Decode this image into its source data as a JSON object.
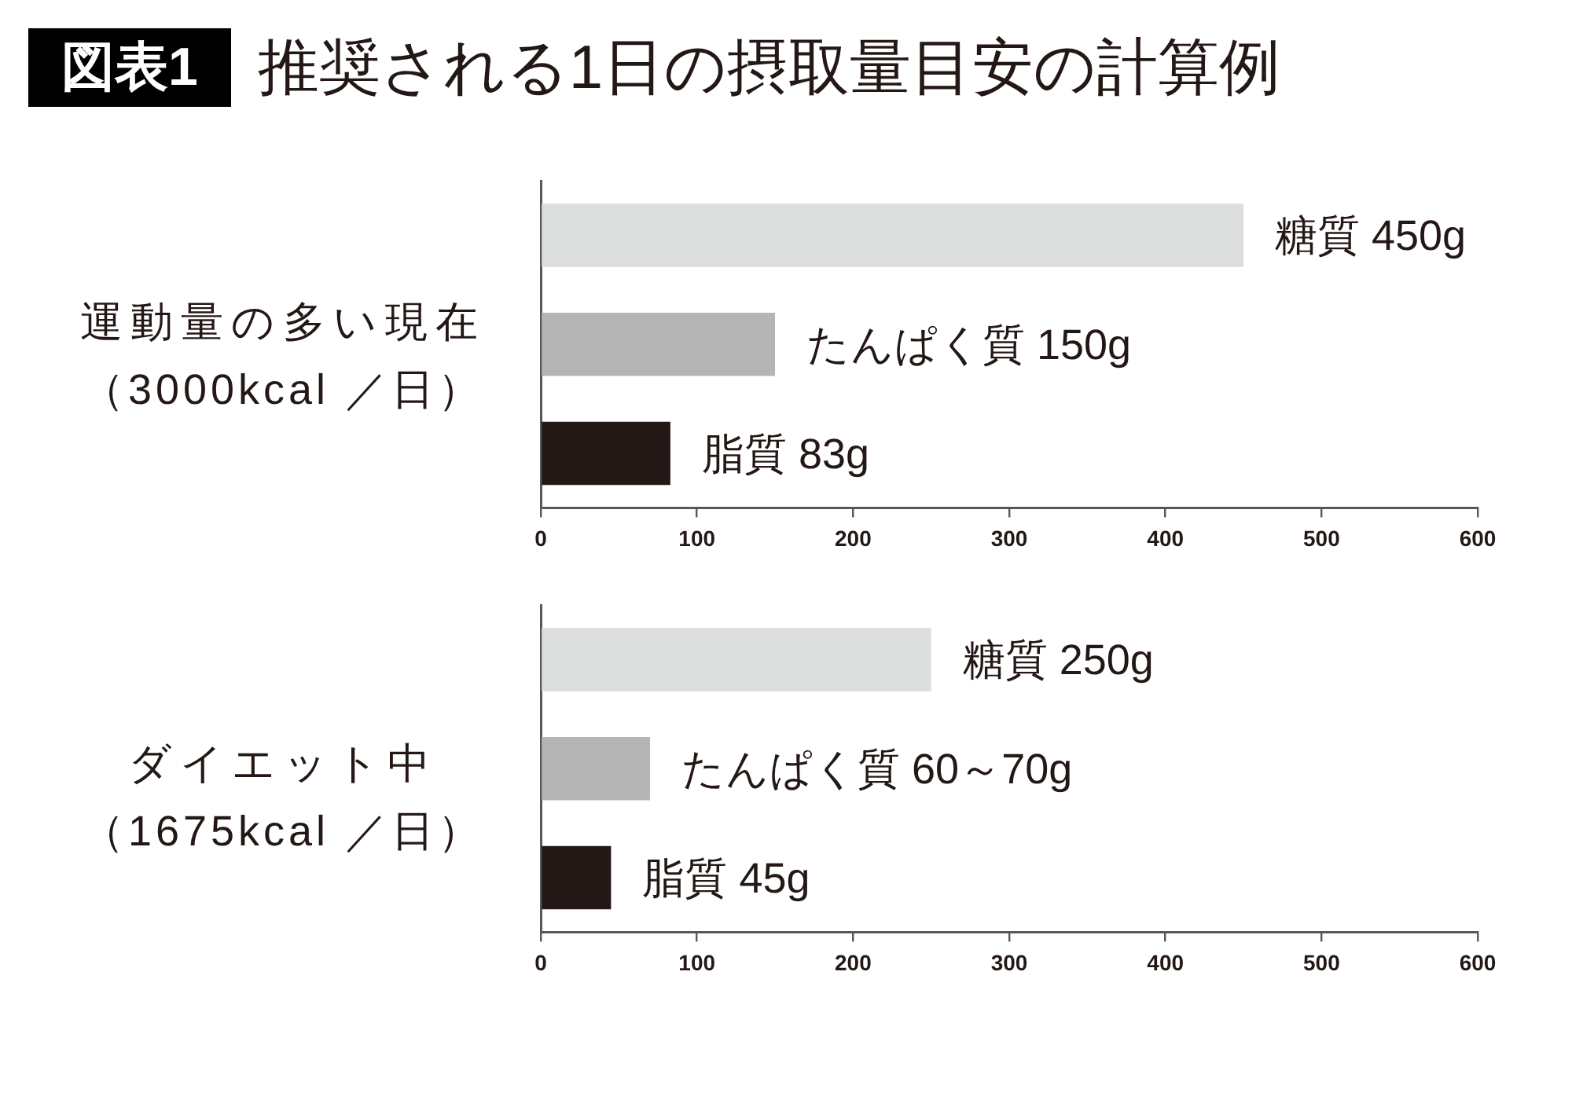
{
  "chart_data": [
    {
      "type": "bar",
      "title": "図表1 推奨される1日の摂取量目安の計算例",
      "ylabel": "運動量の多い現在（3000kcal ／日）",
      "orientation": "horizontal",
      "categories": [
        null,
        null,
        null
      ],
      "values": [
        450,
        150,
        83
      ],
      "value_labels": [
        "糖質 450g",
        "たんぱく質 150g",
        "脂質 83g"
      ],
      "colors": [
        "#dcdddd",
        "#b5b5b6",
        "#231815"
      ],
      "xlim": [
        0,
        600
      ],
      "xticks": [
        0,
        100,
        200,
        300,
        400,
        500,
        600
      ]
    },
    {
      "type": "bar",
      "ylabel": "ダイエット中（1675kcal ／日）",
      "orientation": "horizontal",
      "categories": [
        null,
        null,
        null
      ],
      "values": [
        250,
        70,
        45
      ],
      "value_labels": [
        "糖質 250g",
        "たんぱく質 60～70g",
        "脂質 45g"
      ],
      "colors": [
        "#dcdddd",
        "#b5b5b6",
        "#231815"
      ],
      "xlim": [
        0,
        600
      ],
      "xticks": [
        0,
        100,
        200,
        300,
        400,
        500,
        600
      ]
    }
  ]
}
